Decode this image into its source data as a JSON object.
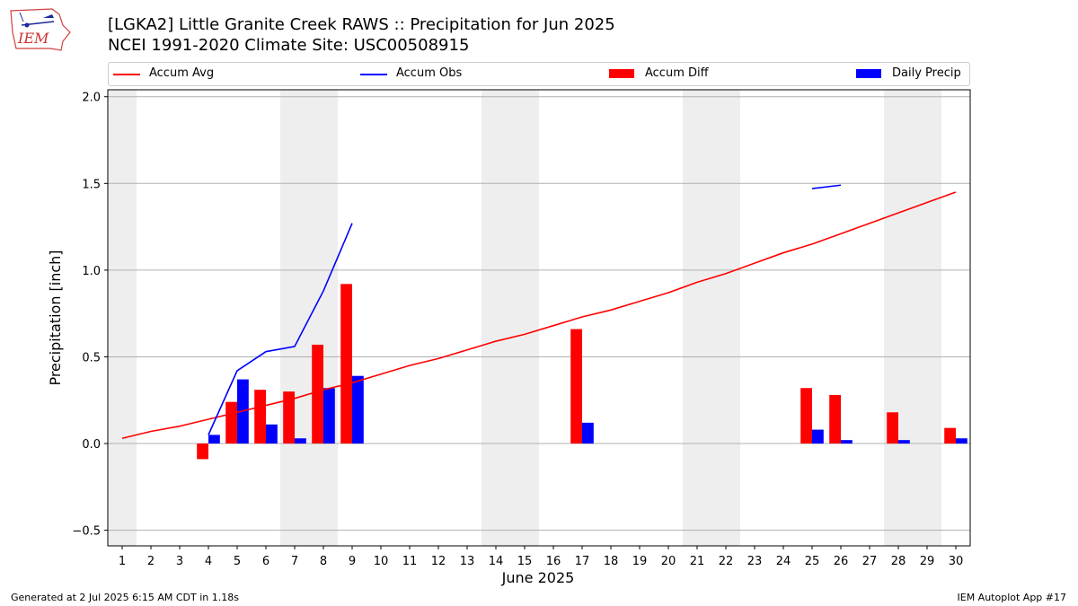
{
  "header": {
    "title_line1": "[LGKA2] Little Granite Creek RAWS :: Precipitation for Jun 2025",
    "title_line2": "NCEI 1991-2020 Climate Site: USC00508915",
    "logo_text": "IEM"
  },
  "footer": {
    "left": "Generated at 2 Jul 2025 6:15 AM CDT in 1.18s",
    "right": "IEM Autoplot App #17"
  },
  "chart_data": {
    "type": "bar",
    "xlabel": "June 2025",
    "ylabel": "Precipitation [inch]",
    "ylim": [
      -0.59,
      2.04
    ],
    "xlim": [
      0.5,
      30.5
    ],
    "yticks": [
      -0.5,
      0.0,
      0.5,
      1.0,
      1.5,
      2.0
    ],
    "ytick_labels": [
      "−0.5",
      "0.0",
      "0.5",
      "1.0",
      "1.5",
      "2.0"
    ],
    "categories": [
      "1",
      "2",
      "3",
      "4",
      "5",
      "6",
      "7",
      "8",
      "9",
      "10",
      "11",
      "12",
      "13",
      "14",
      "15",
      "16",
      "17",
      "18",
      "19",
      "20",
      "21",
      "22",
      "23",
      "24",
      "25",
      "26",
      "27",
      "28",
      "29",
      "30"
    ],
    "weekend_days": [
      1,
      7,
      8,
      14,
      15,
      21,
      22,
      28,
      29
    ],
    "grid": "horizontal",
    "legend_position": "top",
    "series": [
      {
        "name": "Accum Avg",
        "kind": "line",
        "color": "#ff0000",
        "x": [
          1,
          2,
          3,
          4,
          5,
          6,
          7,
          8,
          9,
          10,
          11,
          12,
          13,
          14,
          15,
          16,
          17,
          18,
          19,
          20,
          21,
          22,
          23,
          24,
          25,
          26,
          27,
          28,
          29,
          30
        ],
        "values": [
          0.03,
          0.07,
          0.1,
          0.14,
          0.18,
          0.22,
          0.26,
          0.31,
          0.35,
          0.4,
          0.45,
          0.49,
          0.54,
          0.59,
          0.63,
          0.68,
          0.73,
          0.77,
          0.82,
          0.87,
          0.93,
          0.98,
          1.04,
          1.1,
          1.15,
          1.21,
          1.27,
          1.33,
          1.39,
          1.45
        ]
      },
      {
        "name": "Accum Obs",
        "kind": "line",
        "color": "#0000ff",
        "segments": [
          {
            "x": [
              4,
              5,
              6,
              7,
              8,
              9
            ],
            "values": [
              0.05,
              0.42,
              0.53,
              0.56,
              0.88,
              1.27
            ]
          },
          {
            "x": [
              25,
              26
            ],
            "values": [
              1.47,
              1.49
            ]
          }
        ]
      },
      {
        "name": "Accum Diff",
        "kind": "bar",
        "color": "#ff0000",
        "offset": "left",
        "x": [
          4,
          5,
          6,
          7,
          8,
          9,
          17,
          25,
          26,
          28,
          30
        ],
        "values": [
          -0.09,
          0.24,
          0.31,
          0.3,
          0.57,
          0.92,
          0.66,
          0.32,
          0.28,
          0.18,
          0.09
        ]
      },
      {
        "name": "Daily Precip",
        "kind": "bar",
        "color": "#0000ff",
        "offset": "right",
        "x": [
          4,
          5,
          6,
          7,
          8,
          9,
          17,
          25,
          26,
          28,
          30
        ],
        "values": [
          0.05,
          0.37,
          0.11,
          0.03,
          0.32,
          0.39,
          0.12,
          0.08,
          0.02,
          0.02,
          0.03
        ]
      }
    ]
  }
}
